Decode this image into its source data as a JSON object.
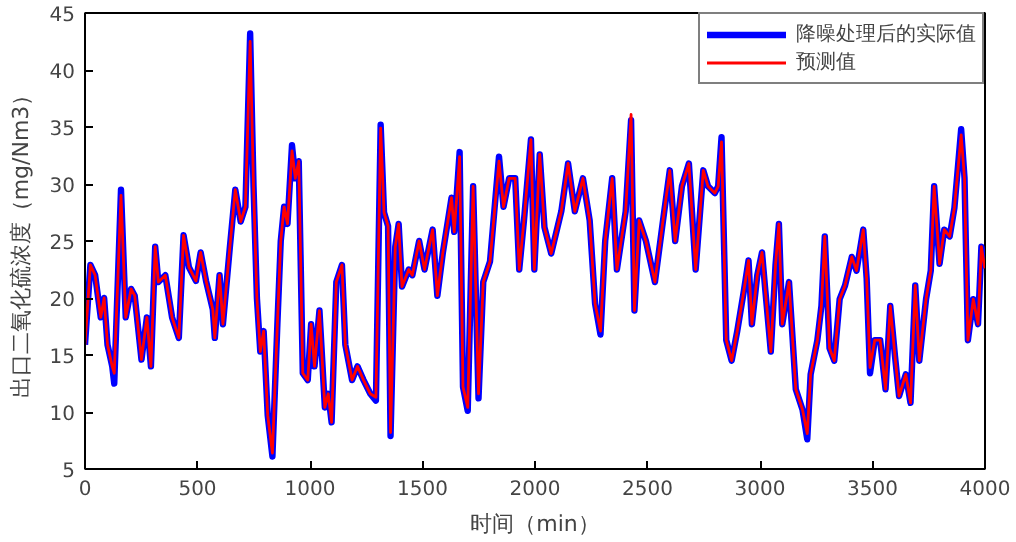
{
  "chart_data": {
    "type": "line",
    "xlabel": "时间（min）",
    "ylabel": "出口二氧化硫浓度（mg/Nm3）",
    "xlim": [
      0,
      4000
    ],
    "ylim": [
      5,
      45
    ],
    "xticks": [
      0,
      500,
      1000,
      1500,
      2000,
      2500,
      3000,
      3500,
      4000
    ],
    "yticks": [
      5,
      10,
      15,
      20,
      25,
      30,
      35,
      40,
      45
    ],
    "grid": false,
    "legend": "top right",
    "line_style": "solid",
    "marker": "none",
    "x": [
      0,
      24,
      45,
      70,
      85,
      100,
      121,
      130,
      160,
      181,
      205,
      221,
      251,
      275,
      293,
      312,
      326,
      357,
      387,
      417,
      438,
      462,
      493,
      514,
      538,
      568,
      577,
      598,
      613,
      644,
      668,
      692,
      713,
      734,
      749,
      764,
      779,
      794,
      812,
      833,
      855,
      870,
      885,
      900,
      920,
      935,
      950,
      968,
      990,
      1005,
      1020,
      1042,
      1066,
      1081,
      1096,
      1117,
      1142,
      1157,
      1187,
      1211,
      1238,
      1268,
      1293,
      1314,
      1329,
      1347,
      1358,
      1379,
      1394,
      1409,
      1439,
      1455,
      1485,
      1509,
      1545,
      1566,
      1590,
      1629,
      1641,
      1665,
      1680,
      1701,
      1725,
      1749,
      1770,
      1800,
      1840,
      1860,
      1885,
      1912,
      1930,
      1951,
      1982,
      1997,
      2021,
      2042,
      2072,
      2117,
      2147,
      2177,
      2213,
      2243,
      2267,
      2291,
      2312,
      2343,
      2364,
      2403,
      2427,
      2442,
      2463,
      2493,
      2533,
      2569,
      2599,
      2623,
      2653,
      2684,
      2714,
      2748,
      2769,
      2799,
      2814,
      2829,
      2850,
      2874,
      2898,
      2928,
      2949,
      2964,
      2988,
      3009,
      3024,
      3048,
      3069,
      3084,
      3099,
      3129,
      3159,
      3189,
      3210,
      3225,
      3255,
      3273,
      3288,
      3309,
      3330,
      3354,
      3378,
      3408,
      3429,
      3459,
      3474,
      3489,
      3510,
      3534,
      3558,
      3579,
      3600,
      3618,
      3648,
      3669,
      3690,
      3708,
      3738,
      3759,
      3774,
      3798,
      3819,
      3843,
      3864,
      3894,
      3909,
      3924,
      3948,
      3969,
      3984,
      3999
    ],
    "series": [
      {
        "name": "降噪处理后的实际值",
        "color": "#0000ff",
        "values": [
          15.9,
          22.9,
          22,
          18.3,
          20,
          15.9,
          14,
          12.5,
          29.5,
          18.3,
          20.8,
          20.2,
          14.6,
          18.3,
          14,
          24.5,
          21.4,
          22,
          18.3,
          16.5,
          25.5,
          22.7,
          21.5,
          24,
          21.5,
          19,
          16.5,
          22,
          17.7,
          24.5,
          29.5,
          26.7,
          28,
          43.2,
          29.8,
          20,
          15.3,
          17.1,
          9.7,
          6.1,
          17.7,
          25,
          28,
          26.5,
          33.4,
          30.5,
          32,
          13.4,
          12.8,
          17.7,
          14,
          18.9,
          10.4,
          11.6,
          9.1,
          21.4,
          22.9,
          15.9,
          12.8,
          14,
          12.8,
          11.6,
          11,
          35.2,
          27.5,
          26.3,
          7.9,
          24.5,
          26.5,
          21,
          22.5,
          22,
          25,
          22.5,
          26,
          20.2,
          23.9,
          28.8,
          25.8,
          32.8,
          12.2,
          10.1,
          29.8,
          11.2,
          21.4,
          23.2,
          32.4,
          28,
          30.5,
          30.5,
          22.5,
          26.8,
          33.9,
          22.5,
          32.6,
          26.2,
          23.9,
          27.6,
          31.8,
          27.6,
          30.5,
          26.8,
          19.5,
          16.8,
          25,
          30.5,
          22.5,
          27.6,
          35.6,
          18.9,
          26.8,
          25,
          21.4,
          26.8,
          31.2,
          25,
          29.8,
          31.8,
          22.5,
          31.2,
          29.8,
          29.2,
          29.8,
          34.1,
          16.3,
          14.5,
          17,
          20.6,
          23.3,
          17.7,
          22,
          24,
          20.6,
          15.3,
          22.9,
          26.5,
          17.7,
          21.4,
          12,
          10.2,
          7.6,
          13.3,
          16.3,
          19.3,
          25.4,
          15.6,
          14.5,
          19.9,
          21.1,
          23.6,
          22.4,
          26,
          21.7,
          13.4,
          16.3,
          16.3,
          12,
          19.3,
          14.9,
          11.4,
          13.3,
          10.8,
          21.1,
          14.5,
          19.9,
          22.4,
          29.8,
          23,
          26,
          25.4,
          27.9,
          34.8,
          30.5,
          16.3,
          19.9,
          17.7,
          24.5,
          22.6
        ]
      },
      {
        "name": "预测值",
        "color": "#ff0000",
        "values": [
          15.9,
          22.9,
          22,
          18.3,
          20,
          15.9,
          14,
          13.4,
          29,
          18.3,
          20.8,
          20.2,
          14.6,
          18.3,
          14,
          24.5,
          21.4,
          22,
          18.3,
          16.5,
          25.5,
          22.7,
          21.5,
          24,
          21.5,
          19,
          16.5,
          22,
          17.7,
          24.5,
          29.5,
          26.7,
          28,
          42.5,
          29.8,
          20,
          15.3,
          17.1,
          9.7,
          6.4,
          17.7,
          25,
          28,
          26.5,
          32.9,
          30.5,
          32,
          13.4,
          12.8,
          17.7,
          14,
          18.9,
          10.4,
          11.6,
          9.1,
          21.4,
          22.9,
          15.9,
          12.8,
          14,
          12.8,
          11.6,
          11.3,
          34.9,
          27.5,
          26.3,
          8.2,
          24.5,
          26.5,
          21,
          22.5,
          22,
          25,
          22.5,
          26,
          20.2,
          23.9,
          28.8,
          25.8,
          32.4,
          12.2,
          10.4,
          29.8,
          11.6,
          21.4,
          23.2,
          32,
          28,
          30.5,
          30.5,
          22.5,
          26.8,
          33.9,
          22.5,
          32.6,
          26.2,
          23.9,
          27.6,
          31.8,
          27.6,
          30.5,
          26.8,
          19.5,
          17.1,
          25,
          30.5,
          22.5,
          27.6,
          36.1,
          18.9,
          26.8,
          25,
          21.4,
          26.8,
          31.2,
          25,
          29.8,
          31.8,
          22.5,
          31.2,
          29.8,
          29.2,
          29.8,
          33.7,
          16.3,
          14.5,
          17,
          20.6,
          23.3,
          17.7,
          22,
          24,
          20.6,
          15.3,
          22.9,
          26.5,
          17.7,
          21.4,
          12,
          10.2,
          8.1,
          13.3,
          16.3,
          19.3,
          25.4,
          15.6,
          14.5,
          19.9,
          21.1,
          23.6,
          22.4,
          26,
          21.7,
          13.9,
          16.3,
          16.3,
          12,
          19.3,
          14.9,
          11.4,
          13.3,
          10.8,
          21.1,
          14.5,
          19.9,
          22.4,
          29.8,
          23,
          26,
          25.4,
          27.9,
          34.3,
          30.5,
          16.3,
          19.9,
          17.7,
          24.5,
          22.6
        ]
      }
    ]
  }
}
